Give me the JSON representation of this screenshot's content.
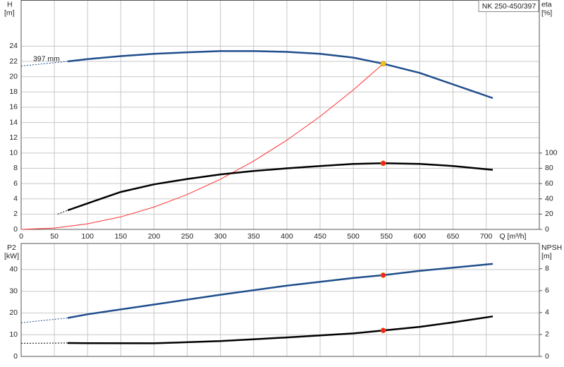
{
  "chart_data": [
    {
      "type": "line",
      "title": "NK 250-450/397",
      "ylabel": "H",
      "yunit": "[m]",
      "y2label": "eta",
      "y2unit": "[%]",
      "xlabel": "Q [m³/h]",
      "annotation": "397 mm",
      "xlim": [
        0,
        780
      ],
      "xticks": [
        0,
        50,
        100,
        150,
        200,
        250,
        300,
        350,
        400,
        450,
        500,
        550,
        600,
        650,
        700
      ],
      "ylim": [
        0,
        30
      ],
      "yticks": [
        0,
        2,
        4,
        6,
        8,
        10,
        12,
        14,
        16,
        18,
        20,
        22,
        24
      ],
      "y2lim": [
        0,
        300
      ],
      "y2ticks": [
        0,
        20,
        40,
        60,
        80,
        100
      ],
      "grid": true,
      "series": [
        {
          "color": "#1f4e8c",
          "style": "dashed",
          "x": [
            0,
            70
          ],
          "values": [
            21.4,
            22.0
          ]
        },
        {
          "color": "#1f4e8c",
          "style": "solid",
          "x": [
            70,
            100,
            150,
            200,
            250,
            300,
            350,
            400,
            450,
            500,
            545,
            600,
            650,
            710
          ],
          "values": [
            22.0,
            22.3,
            22.7,
            23.0,
            23.2,
            23.35,
            23.35,
            23.25,
            23.0,
            22.5,
            21.7,
            20.5,
            19.0,
            17.2
          ]
        },
        {
          "color": "#ff3030",
          "style": "thin",
          "x": [
            0,
            50,
            100,
            150,
            200,
            250,
            300,
            350,
            400,
            450,
            500,
            545
          ],
          "values": [
            0,
            0.18,
            0.73,
            1.64,
            2.92,
            4.57,
            6.57,
            8.95,
            11.69,
            14.79,
            18.27,
            21.7
          ]
        },
        {
          "color": "#f5c518",
          "style": "marker",
          "x": [
            545
          ],
          "values": [
            21.7
          ]
        },
        {
          "color": "#000000",
          "style": "dashed",
          "axis": "y2",
          "x": [
            55,
            70
          ],
          "values": [
            20,
            25
          ]
        },
        {
          "color": "#000000",
          "style": "solid",
          "axis": "y2",
          "x": [
            70,
            100,
            150,
            200,
            250,
            300,
            350,
            400,
            450,
            500,
            545,
            600,
            650,
            710
          ],
          "values": [
            25,
            34,
            49,
            59,
            66,
            72,
            76.5,
            80,
            83,
            85.7,
            86.6,
            85.7,
            83,
            78
          ]
        },
        {
          "color": "#ff2020",
          "style": "marker",
          "axis": "y2",
          "x": [
            545
          ],
          "values": [
            86.6
          ]
        }
      ]
    },
    {
      "type": "line",
      "ylabel": "P2",
      "yunit": "[kW]",
      "y2label": "NPSH",
      "y2unit": "[m]",
      "xlim": [
        0,
        780
      ],
      "xticks": [
        0,
        50,
        100,
        150,
        200,
        250,
        300,
        350,
        400,
        450,
        500,
        550,
        600,
        650,
        700
      ],
      "xtick_labels": false,
      "ylim": [
        0,
        52
      ],
      "yticks": [
        0,
        10,
        20,
        30,
        40
      ],
      "y2lim": [
        0,
        10.3
      ],
      "y2ticks": [
        0,
        2,
        4,
        6,
        8
      ],
      "grid": true,
      "series": [
        {
          "color": "#1f4e8c",
          "style": "dashed",
          "x": [
            0,
            70
          ],
          "values": [
            15.5,
            17.7
          ]
        },
        {
          "color": "#1f4e8c",
          "style": "solid",
          "x": [
            70,
            100,
            200,
            300,
            400,
            500,
            545,
            600,
            700,
            710
          ],
          "values": [
            17.7,
            19.4,
            23.9,
            28.4,
            32.6,
            36.1,
            37.4,
            39.4,
            42.3,
            42.6
          ]
        },
        {
          "color": "#ff2020",
          "style": "marker",
          "x": [
            545
          ],
          "values": [
            37.4
          ]
        },
        {
          "color": "#000000",
          "style": "dashed",
          "axis": "y2",
          "x": [
            0,
            70
          ],
          "values": [
            1.2,
            1.22
          ]
        },
        {
          "color": "#000000",
          "style": "solid",
          "axis": "y2",
          "x": [
            70,
            100,
            200,
            300,
            400,
            500,
            545,
            600,
            650,
            710
          ],
          "values": [
            1.22,
            1.21,
            1.2,
            1.4,
            1.73,
            2.1,
            2.37,
            2.7,
            3.1,
            3.65
          ]
        },
        {
          "color": "#ff2020",
          "style": "marker",
          "axis": "y2",
          "x": [
            545
          ],
          "values": [
            2.37
          ]
        }
      ]
    }
  ]
}
